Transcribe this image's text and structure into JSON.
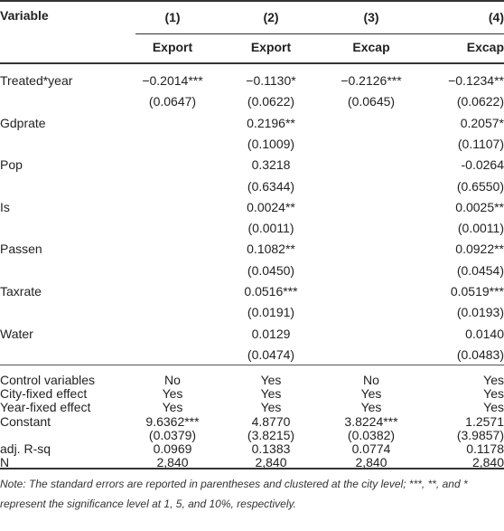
{
  "header": {
    "variable_label": "Variable",
    "cols": [
      "(1)",
      "(2)",
      "(3)",
      "(4)"
    ],
    "depvars": [
      "Export",
      "Export",
      "Excap",
      "Excap"
    ]
  },
  "rows": [
    {
      "label": "Treated*year",
      "c": [
        "−0.2014***",
        "−0.1130*",
        "−0.2126***",
        "−0.1234**"
      ]
    },
    {
      "label": "",
      "c": [
        "(0.0647)",
        "(0.0622)",
        "(0.0645)",
        "(0.0622)"
      ]
    },
    {
      "label": "Gdprate",
      "c": [
        "",
        "0.2196**",
        "",
        "0.2057*"
      ]
    },
    {
      "label": "",
      "c": [
        "",
        "(0.1009)",
        "",
        "(0.1107)"
      ]
    },
    {
      "label": "Pop",
      "c": [
        "",
        "0.3218",
        "",
        "-0.0264"
      ]
    },
    {
      "label": "",
      "c": [
        "",
        "(0.6344)",
        "",
        "(0.6550)"
      ]
    },
    {
      "label": "Is",
      "c": [
        "",
        "0.0024**",
        "",
        "0.0025**"
      ]
    },
    {
      "label": "",
      "c": [
        "",
        "(0.0011)",
        "",
        "(0.0011)"
      ]
    },
    {
      "label": "Passen",
      "c": [
        "",
        "0.1082**",
        "",
        "0.0922**"
      ]
    },
    {
      "label": "",
      "c": [
        "",
        "(0.0450)",
        "",
        "(0.0454)"
      ]
    },
    {
      "label": "Taxrate",
      "c": [
        "",
        "0.0516***",
        "",
        "0.0519***"
      ]
    },
    {
      "label": "",
      "c": [
        "",
        "(0.0191)",
        "",
        "(0.0193)"
      ]
    },
    {
      "label": "Water",
      "c": [
        "",
        "0.0129",
        "",
        "0.0140"
      ]
    },
    {
      "label": "",
      "c": [
        "",
        "(0.0474)",
        "",
        "(0.0483)"
      ]
    }
  ],
  "rows2": [
    {
      "label": "Control variables",
      "c": [
        "No",
        "Yes",
        "No",
        "Yes"
      ]
    },
    {
      "label": "City-fixed effect",
      "c": [
        "Yes",
        "Yes",
        "Yes",
        "Yes"
      ]
    },
    {
      "label": "Year-fixed effect",
      "c": [
        "Yes",
        "Yes",
        "Yes",
        "Yes"
      ]
    },
    {
      "label": "Constant",
      "c": [
        "9.6362***",
        "4.8770",
        "3.8224***",
        "1.2571"
      ]
    },
    {
      "label": "",
      "c": [
        "(0.0379)",
        "(3.8215)",
        "(0.0382)",
        "(3.9857)"
      ]
    },
    {
      "label": "adj. R-sq",
      "c": [
        "0.0969",
        "0.1383",
        "0.0774",
        "0.1178"
      ]
    },
    {
      "label": "N",
      "c": [
        "2,840",
        "2,840",
        "2,840",
        "2,840"
      ]
    }
  ],
  "note": "Note: The standard errors are reported in parentheses and clustered at the city level; ***, **, and * represent the significance level at 1, 5, and 10%, respectively."
}
